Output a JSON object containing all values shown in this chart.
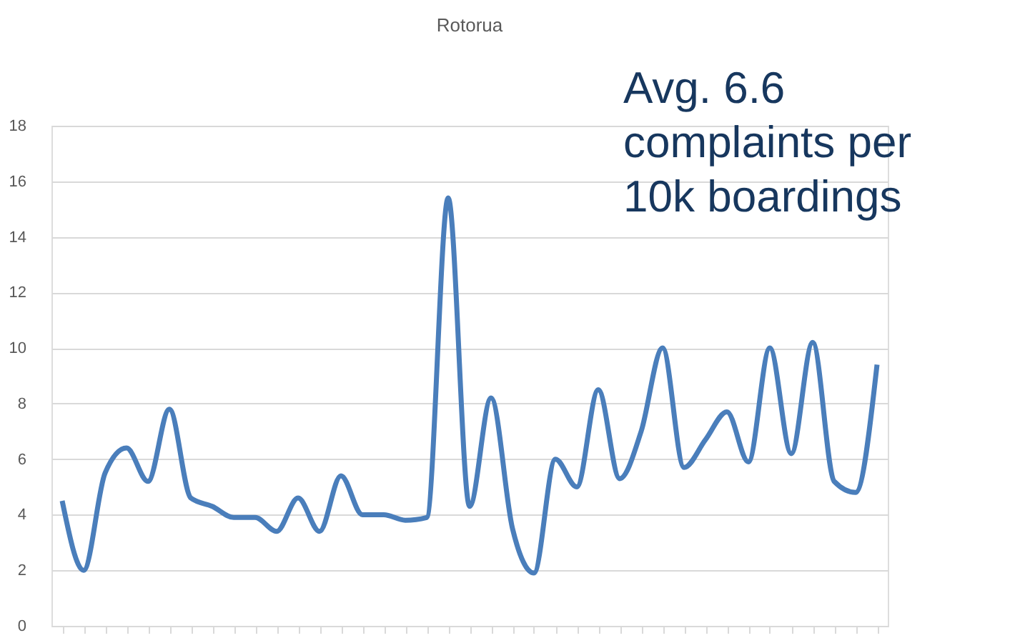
{
  "chart_data": {
    "type": "line",
    "title": "Rotorua",
    "categories": [
      null,
      null,
      null,
      null,
      null,
      null,
      null,
      null,
      null,
      null,
      null,
      null,
      null,
      null,
      null,
      null,
      null,
      null,
      null,
      null,
      null,
      null,
      null,
      null,
      null,
      null,
      null,
      null,
      null,
      null,
      null,
      null,
      null,
      null,
      null,
      null,
      null,
      null,
      null
    ],
    "series": [
      {
        "color": "#4a7ebb",
        "values": [
          4.5,
          2.0,
          5.5,
          6.4,
          5.2,
          7.8,
          4.6,
          4.3,
          3.9,
          3.9,
          3.4,
          4.6,
          3.4,
          5.4,
          4.0,
          4.0,
          3.8,
          3.9,
          15.4,
          4.3,
          8.2,
          3.5,
          1.9,
          6.0,
          5.0,
          8.5,
          5.3,
          7.0,
          10.0,
          5.7,
          6.7,
          7.7,
          5.9,
          10.0,
          6.2,
          10.2,
          5.2,
          4.8,
          9.4
        ]
      }
    ],
    "ylim": [
      0,
      18
    ],
    "yticks": [
      0,
      2,
      4,
      6,
      8,
      10,
      12,
      14,
      16,
      18
    ],
    "grid": "y",
    "tick_labels": "y",
    "marker": "none",
    "line_style": "solid",
    "annotations": [
      "Avg. 6.6 complaints per 10k boardings"
    ]
  }
}
